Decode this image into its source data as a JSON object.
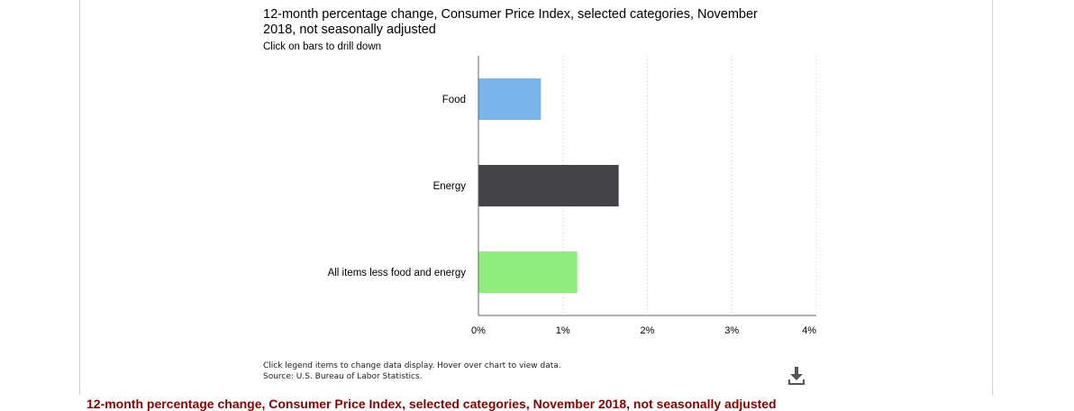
{
  "chart_data": {
    "type": "bar",
    "orientation": "horizontal",
    "title": "12-month percentage change, Consumer Price Index, selected categories, November 2018, not seasonally adjusted",
    "subtitle": "Click on bars to drill down",
    "categories": [
      "Food",
      "Energy",
      "All items less food and energy"
    ],
    "values": [
      0.74,
      1.66,
      1.17
    ],
    "colors": [
      "#7cb5ec",
      "#434348",
      "#90ed7d"
    ],
    "xlim": [
      0,
      4
    ],
    "xticks": [
      "0%",
      "1%",
      "2%",
      "3%",
      "4%"
    ],
    "grid": true
  },
  "footnote": {
    "line1": "Click legend items to change data display. Hover over chart to view data.",
    "line2": "Source: U.S. Bureau of Labor Statistics."
  },
  "download_icon": "download-icon",
  "below_title": "12-month percentage change, Consumer Price Index, selected categories, November 2018, not seasonally adjusted"
}
